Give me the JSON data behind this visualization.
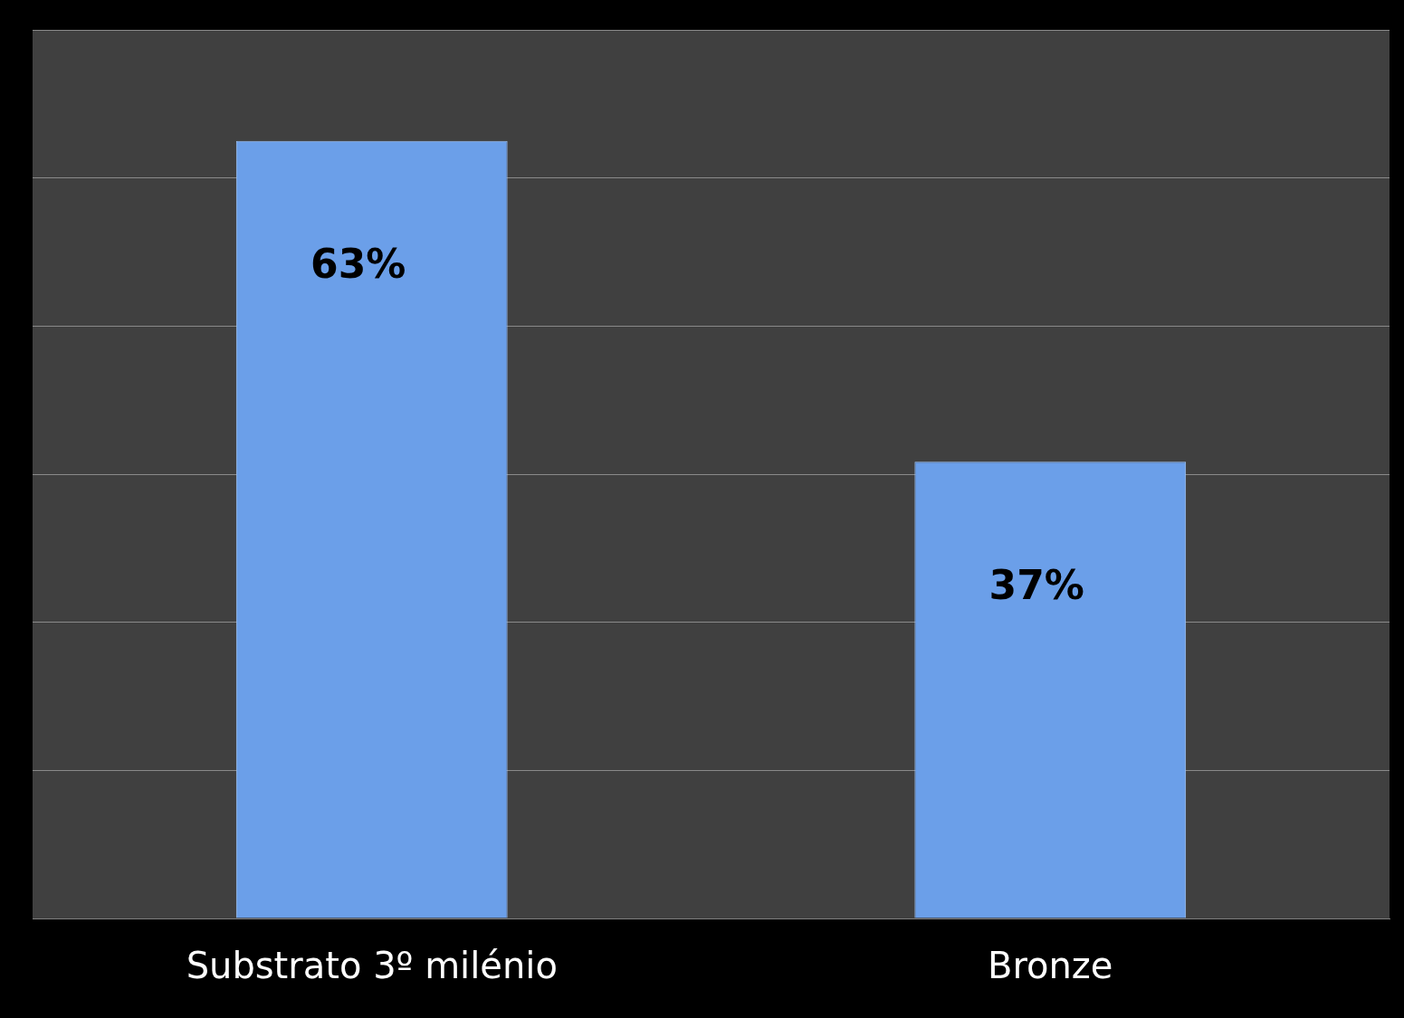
{
  "chart_data": {
    "type": "bar",
    "categories": [
      "Substrato 3º milénio",
      "Bronze"
    ],
    "values": [
      63,
      37
    ],
    "value_labels": [
      "63%",
      "37%"
    ],
    "color": "#6b9fe9",
    "ylim": [
      0,
      72
    ],
    "yticks": [
      {
        "value": 0,
        "label": null
      },
      {
        "value": 12,
        "label": null
      },
      {
        "value": 24,
        "label": null
      },
      {
        "value": 36,
        "label": null
      },
      {
        "value": 48,
        "label": null
      },
      {
        "value": 60,
        "label": null
      },
      {
        "value": 72,
        "label": null
      }
    ],
    "grid": "y",
    "tick_labels": "x",
    "legend": false
  }
}
